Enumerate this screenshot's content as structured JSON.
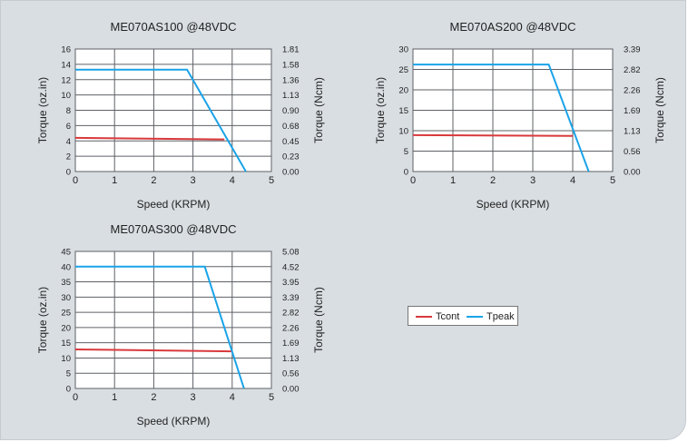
{
  "colors": {
    "tcont": "#d9393c",
    "tpeak": "#1aa3e8",
    "grid": "#5d6066",
    "plot_bg": "#ffffff"
  },
  "legend": {
    "tcont_label": "Tcont",
    "tpeak_label": "Tpeak"
  },
  "chart_data": [
    {
      "type": "line",
      "title": "ME070AS100 @48VDC",
      "xlabel": "Speed (KRPM)",
      "ylabel": "Torque (oz.in)",
      "y2label": "Torque (Ncm)",
      "xlim": [
        0,
        5
      ],
      "ylim": [
        0,
        16
      ],
      "xticks": [
        "0",
        "1",
        "2",
        "3",
        "4",
        "5"
      ],
      "yticks": [
        "0",
        "2",
        "4",
        "6",
        "8",
        "10",
        "12",
        "14",
        "16"
      ],
      "y2ticks": [
        "0.00",
        "0.23",
        "0.45",
        "0.68",
        "0.90",
        "1.13",
        "1.36",
        "1.58",
        "1.81"
      ],
      "grid": true,
      "series": [
        {
          "name": "Tcont",
          "color_key": "tcont",
          "x": [
            0,
            3.8
          ],
          "y": [
            4.4,
            4.2
          ]
        },
        {
          "name": "Tpeak",
          "color_key": "tpeak",
          "x": [
            0,
            2.85,
            4.35
          ],
          "y": [
            13.3,
            13.3,
            0
          ]
        }
      ]
    },
    {
      "type": "line",
      "title": "ME070AS200 @48VDC",
      "xlabel": "Speed (KRPM)",
      "ylabel": "Torque (oz.in)",
      "y2label": "Torque (Ncm)",
      "xlim": [
        0,
        5
      ],
      "ylim": [
        0,
        30
      ],
      "xticks": [
        "0",
        "1",
        "2",
        "3",
        "4",
        "5"
      ],
      "yticks": [
        "0",
        "5",
        "10",
        "15",
        "20",
        "25",
        "30"
      ],
      "y2ticks": [
        "0.00",
        "0.56",
        "1.13",
        "1.69",
        "2.26",
        "2.82",
        "3.39"
      ],
      "grid": true,
      "series": [
        {
          "name": "Tcont",
          "color_key": "tcont",
          "x": [
            0,
            4.0
          ],
          "y": [
            8.9,
            8.7
          ]
        },
        {
          "name": "Tpeak",
          "color_key": "tpeak",
          "x": [
            0,
            3.4,
            4.4
          ],
          "y": [
            26.2,
            26.2,
            0
          ]
        }
      ]
    },
    {
      "type": "line",
      "title": "ME070AS300 @48VDC",
      "xlabel": "Speed (KRPM)",
      "ylabel": "Torque (oz.in)",
      "y2label": "Torque (Ncm)",
      "xlim": [
        0,
        5
      ],
      "ylim": [
        0,
        45
      ],
      "xticks": [
        "0",
        "1",
        "2",
        "3",
        "4",
        "5"
      ],
      "yticks": [
        "0",
        "5",
        "10",
        "15",
        "20",
        "25",
        "30",
        "35",
        "40",
        "45"
      ],
      "y2ticks": [
        "0.00",
        "0.56",
        "1.13",
        "1.69",
        "2.26",
        "2.82",
        "3.39",
        "3.95",
        "4.52",
        "5.08"
      ],
      "grid": true,
      "series": [
        {
          "name": "Tcont",
          "color_key": "tcont",
          "x": [
            0,
            4.0
          ],
          "y": [
            12.8,
            12.2
          ]
        },
        {
          "name": "Tpeak",
          "color_key": "tpeak",
          "x": [
            0,
            3.3,
            4.3
          ],
          "y": [
            40,
            40,
            0
          ]
        }
      ]
    }
  ]
}
